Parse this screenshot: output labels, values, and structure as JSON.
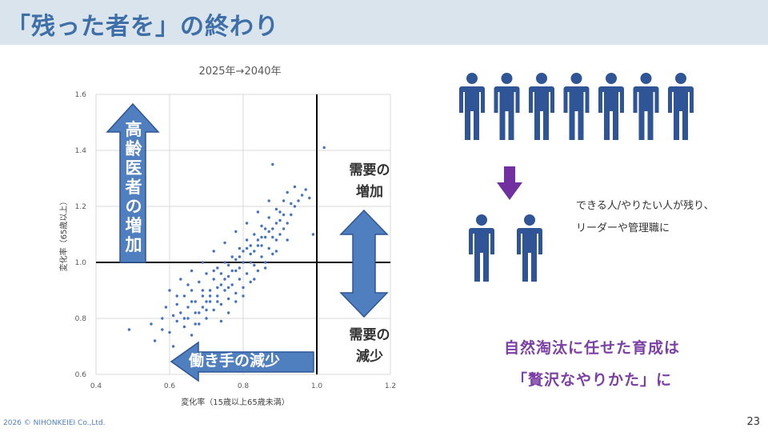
{
  "slide": {
    "title": "「残った者を」の終わり",
    "page_number": "23",
    "footer": "2026 © NIHONKEIEI Co.,Ltd."
  },
  "chart_data": {
    "type": "scatter",
    "title": "2025年→2040年",
    "xlabel": "変化率（15歳以上65歳未満）",
    "ylabel": "変化率（65歳以上）",
    "xlim": [
      0.4,
      1.2
    ],
    "ylim": [
      0.6,
      1.6
    ],
    "xticks": [
      "0.4",
      "0.6",
      "0.8",
      "1.0",
      "1.2"
    ],
    "yticks": [
      "0.6",
      "0.8",
      "1.0",
      "1.2",
      "1.4",
      "1.6"
    ],
    "grid": true,
    "reference_lines": {
      "x": 1.0,
      "y": 1.0
    },
    "marker_color": "#4472c4",
    "points": [
      [
        0.49,
        0.76
      ],
      [
        0.55,
        0.78
      ],
      [
        0.56,
        0.72
      ],
      [
        0.58,
        0.8
      ],
      [
        0.59,
        0.84
      ],
      [
        0.6,
        0.75
      ],
      [
        0.61,
        0.7
      ],
      [
        0.62,
        0.79
      ],
      [
        0.62,
        0.85
      ],
      [
        0.63,
        0.82
      ],
      [
        0.64,
        0.77
      ],
      [
        0.64,
        0.88
      ],
      [
        0.65,
        0.8
      ],
      [
        0.65,
        0.84
      ],
      [
        0.66,
        0.74
      ],
      [
        0.66,
        0.9
      ],
      [
        0.67,
        0.82
      ],
      [
        0.67,
        0.86
      ],
      [
        0.68,
        0.78
      ],
      [
        0.68,
        0.93
      ],
      [
        0.69,
        0.84
      ],
      [
        0.69,
        0.88
      ],
      [
        0.7,
        0.8
      ],
      [
        0.7,
        0.96
      ],
      [
        0.71,
        0.86
      ],
      [
        0.71,
        0.9
      ],
      [
        0.72,
        0.83
      ],
      [
        0.72,
        0.94
      ],
      [
        0.73,
        0.88
      ],
      [
        0.73,
        0.98
      ],
      [
        0.74,
        0.85
      ],
      [
        0.74,
        0.92
      ],
      [
        0.75,
        0.9
      ],
      [
        0.75,
        1.0
      ],
      [
        0.76,
        0.87
      ],
      [
        0.76,
        0.95
      ],
      [
        0.77,
        0.92
      ],
      [
        0.77,
        1.02
      ],
      [
        0.78,
        0.89
      ],
      [
        0.78,
        0.97
      ],
      [
        0.79,
        0.94
      ],
      [
        0.79,
        1.05
      ],
      [
        0.8,
        0.91
      ],
      [
        0.8,
        1.0
      ],
      [
        0.81,
        0.96
      ],
      [
        0.81,
        1.08
      ],
      [
        0.82,
        0.93
      ],
      [
        0.82,
        1.03
      ],
      [
        0.83,
        0.99
      ],
      [
        0.83,
        1.1
      ],
      [
        0.84,
        0.97
      ],
      [
        0.84,
        1.06
      ],
      [
        0.85,
        1.02
      ],
      [
        0.85,
        1.13
      ],
      [
        0.86,
        1.0
      ],
      [
        0.86,
        1.09
      ],
      [
        0.87,
        1.05
      ],
      [
        0.87,
        1.16
      ],
      [
        0.88,
        1.03
      ],
      [
        0.88,
        1.12
      ],
      [
        0.89,
        1.08
      ],
      [
        0.89,
        1.19
      ],
      [
        0.9,
        1.1
      ],
      [
        0.9,
        1.15
      ],
      [
        0.91,
        1.12
      ],
      [
        0.91,
        1.22
      ],
      [
        0.92,
        1.14
      ],
      [
        0.92,
        1.25
      ],
      [
        0.93,
        1.17
      ],
      [
        0.94,
        1.2
      ],
      [
        0.94,
        1.27
      ],
      [
        0.95,
        1.22
      ],
      [
        0.96,
        1.24
      ],
      [
        0.97,
        1.26
      ],
      [
        0.98,
        1.23
      ],
      [
        0.99,
        1.1
      ],
      [
        0.88,
        1.35
      ],
      [
        1.02,
        1.41
      ],
      [
        0.6,
        0.9
      ],
      [
        0.63,
        0.94
      ],
      [
        0.66,
        0.97
      ],
      [
        0.69,
        1.0
      ],
      [
        0.72,
        1.04
      ],
      [
        0.75,
        1.07
      ],
      [
        0.78,
        1.11
      ],
      [
        0.81,
        1.14
      ],
      [
        0.84,
        1.18
      ],
      [
        0.87,
        1.22
      ],
      [
        0.7,
        0.86
      ],
      [
        0.73,
        0.91
      ],
      [
        0.76,
        0.99
      ],
      [
        0.79,
        1.02
      ],
      [
        0.82,
        1.06
      ],
      [
        0.85,
        1.09
      ],
      [
        0.68,
        0.82
      ],
      [
        0.71,
        0.88
      ],
      [
        0.74,
        0.96
      ],
      [
        0.77,
        0.97
      ],
      [
        0.8,
        1.04
      ],
      [
        0.83,
        1.04
      ],
      [
        0.86,
        1.12
      ],
      [
        0.89,
        1.14
      ],
      [
        0.62,
        0.88
      ],
      [
        0.65,
        0.92
      ],
      [
        0.67,
        0.78
      ],
      [
        0.7,
        0.83
      ],
      [
        0.73,
        0.86
      ],
      [
        0.76,
        0.91
      ],
      [
        0.79,
        0.98
      ],
      [
        0.82,
        1.0
      ],
      [
        0.85,
        1.06
      ],
      [
        0.88,
        1.09
      ],
      [
        0.91,
        1.17
      ],
      [
        0.93,
        1.21
      ],
      [
        0.64,
        0.8
      ],
      [
        0.66,
        0.86
      ],
      [
        0.69,
        0.9
      ],
      [
        0.72,
        0.97
      ],
      [
        0.75,
        0.94
      ],
      [
        0.78,
        1.01
      ],
      [
        0.81,
        1.05
      ],
      [
        0.84,
        1.08
      ],
      [
        0.87,
        1.11
      ],
      [
        0.9,
        1.18
      ],
      [
        0.58,
        0.76
      ],
      [
        0.61,
        0.81
      ],
      [
        0.76,
        0.82
      ],
      [
        0.78,
        0.86
      ],
      [
        0.8,
        0.88
      ],
      [
        0.74,
        0.79
      ],
      [
        0.83,
        0.94
      ],
      [
        0.86,
        0.98
      ],
      [
        0.89,
        1.04
      ],
      [
        0.92,
        1.08
      ]
    ]
  },
  "chart_overlays": {
    "up_arrow_text": "高齢医者の増加",
    "left_arrow_text": "働き手の減少",
    "demand_up": [
      "需要の",
      "増加"
    ],
    "demand_down": [
      "需要の",
      "減少"
    ],
    "arrow_fill": "#4f7fbf",
    "arrow_stroke": "#2f5597"
  },
  "right_panel": {
    "people_top_count": 7,
    "people_bottom_count": 2,
    "person_color": "#2f5597",
    "down_arrow_color": "#7030a0",
    "note_lines": [
      "できる人/やりたい人が残り、",
      "リーダーや管理職に"
    ],
    "callout_lines": [
      "自然淘汰に任せた育成は",
      "「贅沢なやりかた」に"
    ],
    "callout_color": "#7b3fa6"
  }
}
